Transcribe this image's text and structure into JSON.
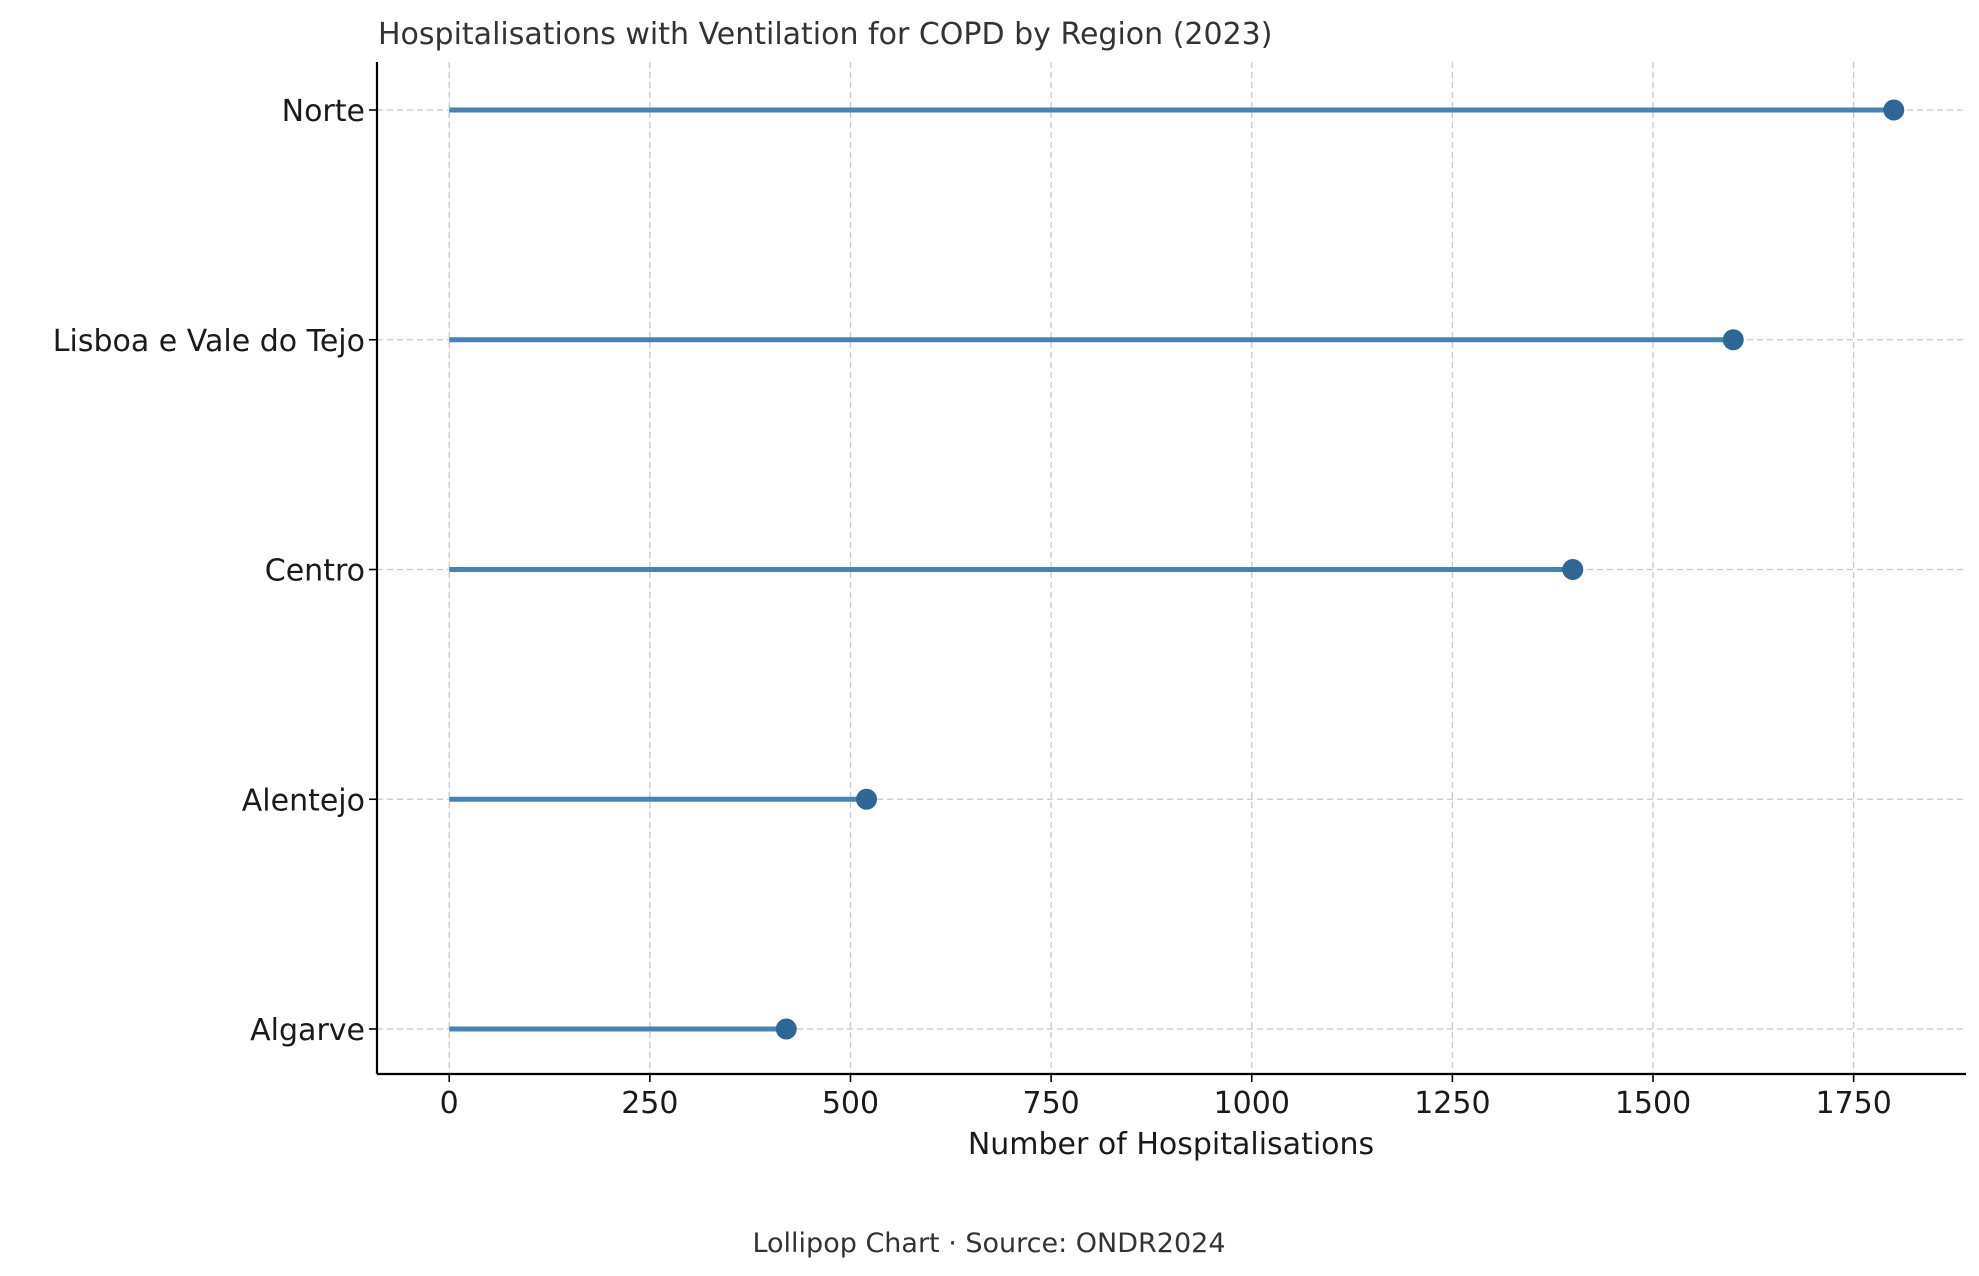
{
  "chart_data": {
    "type": "lollipop",
    "title": "Hospitalisations with Ventilation for COPD by Region (2023)",
    "xlabel": "Number of Hospitalisations",
    "ylabel": "",
    "categories": [
      "Norte",
      "Lisboa e Vale do Tejo",
      "Centro",
      "Alentejo",
      "Algarve"
    ],
    "values": [
      1800,
      1600,
      1400,
      520,
      420
    ],
    "xlim": [
      -90,
      1890
    ],
    "xticks": [
      0,
      250,
      500,
      750,
      1000,
      1250,
      1500,
      1750
    ],
    "grid": true,
    "colors": {
      "stem": "#4682b4",
      "marker": "#2e6696"
    }
  },
  "caption": "Lollipop Chart · Source: ONDR2024"
}
